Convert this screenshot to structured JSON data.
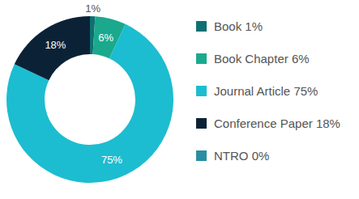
{
  "chart_data": {
    "type": "donut",
    "categories": [
      "Book 1%",
      "Book Chapter 6%",
      "Journal Article 75%",
      "Conference Paper 18%",
      "NTRO 0%"
    ],
    "values": [
      1,
      6,
      75,
      18,
      0
    ],
    "value_labels": [
      "1%",
      "6%",
      "75%",
      "18%",
      null
    ],
    "colors": [
      "#0f6f72",
      "#1aa98c",
      "#1cbdd0",
      "#0b2236",
      "#2a8ea3"
    ],
    "data_labels": true,
    "legend": "right"
  }
}
